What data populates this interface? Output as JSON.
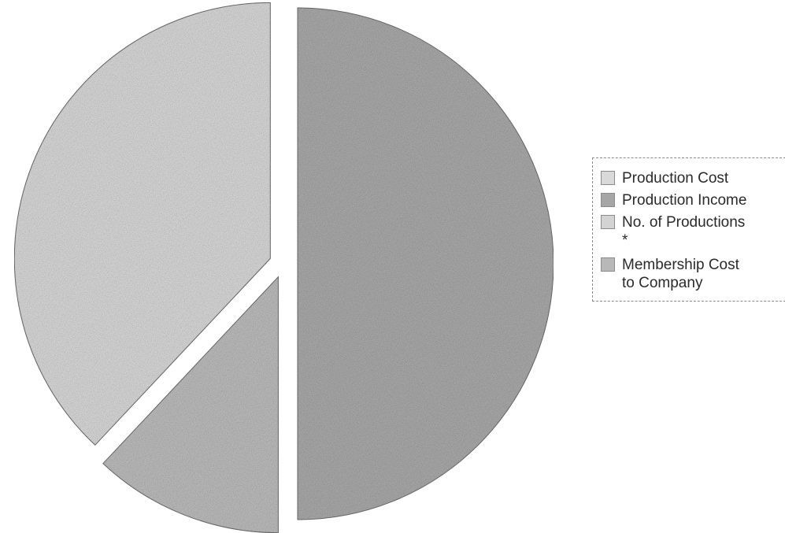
{
  "colors": {
    "production_cost": "#d9d9d9",
    "production_income": "#a6a6a6",
    "no_of_productions": "#d3d3d3",
    "membership_cost": "#b8b8b8"
  },
  "chart_data": {
    "type": "pie",
    "legend_position": "right",
    "slices": [
      {
        "label": "Production Cost",
        "value": 0,
        "color": "#d9d9d9"
      },
      {
        "label": "Production Income",
        "value": 50,
        "color": "#a6a6a6"
      },
      {
        "label": "No. of Productions\n*",
        "value": 38,
        "color": "#d3d3d3"
      },
      {
        "label": "Membership Cost\nto Company",
        "value": 12,
        "color": "#b8b8b8"
      }
    ]
  }
}
